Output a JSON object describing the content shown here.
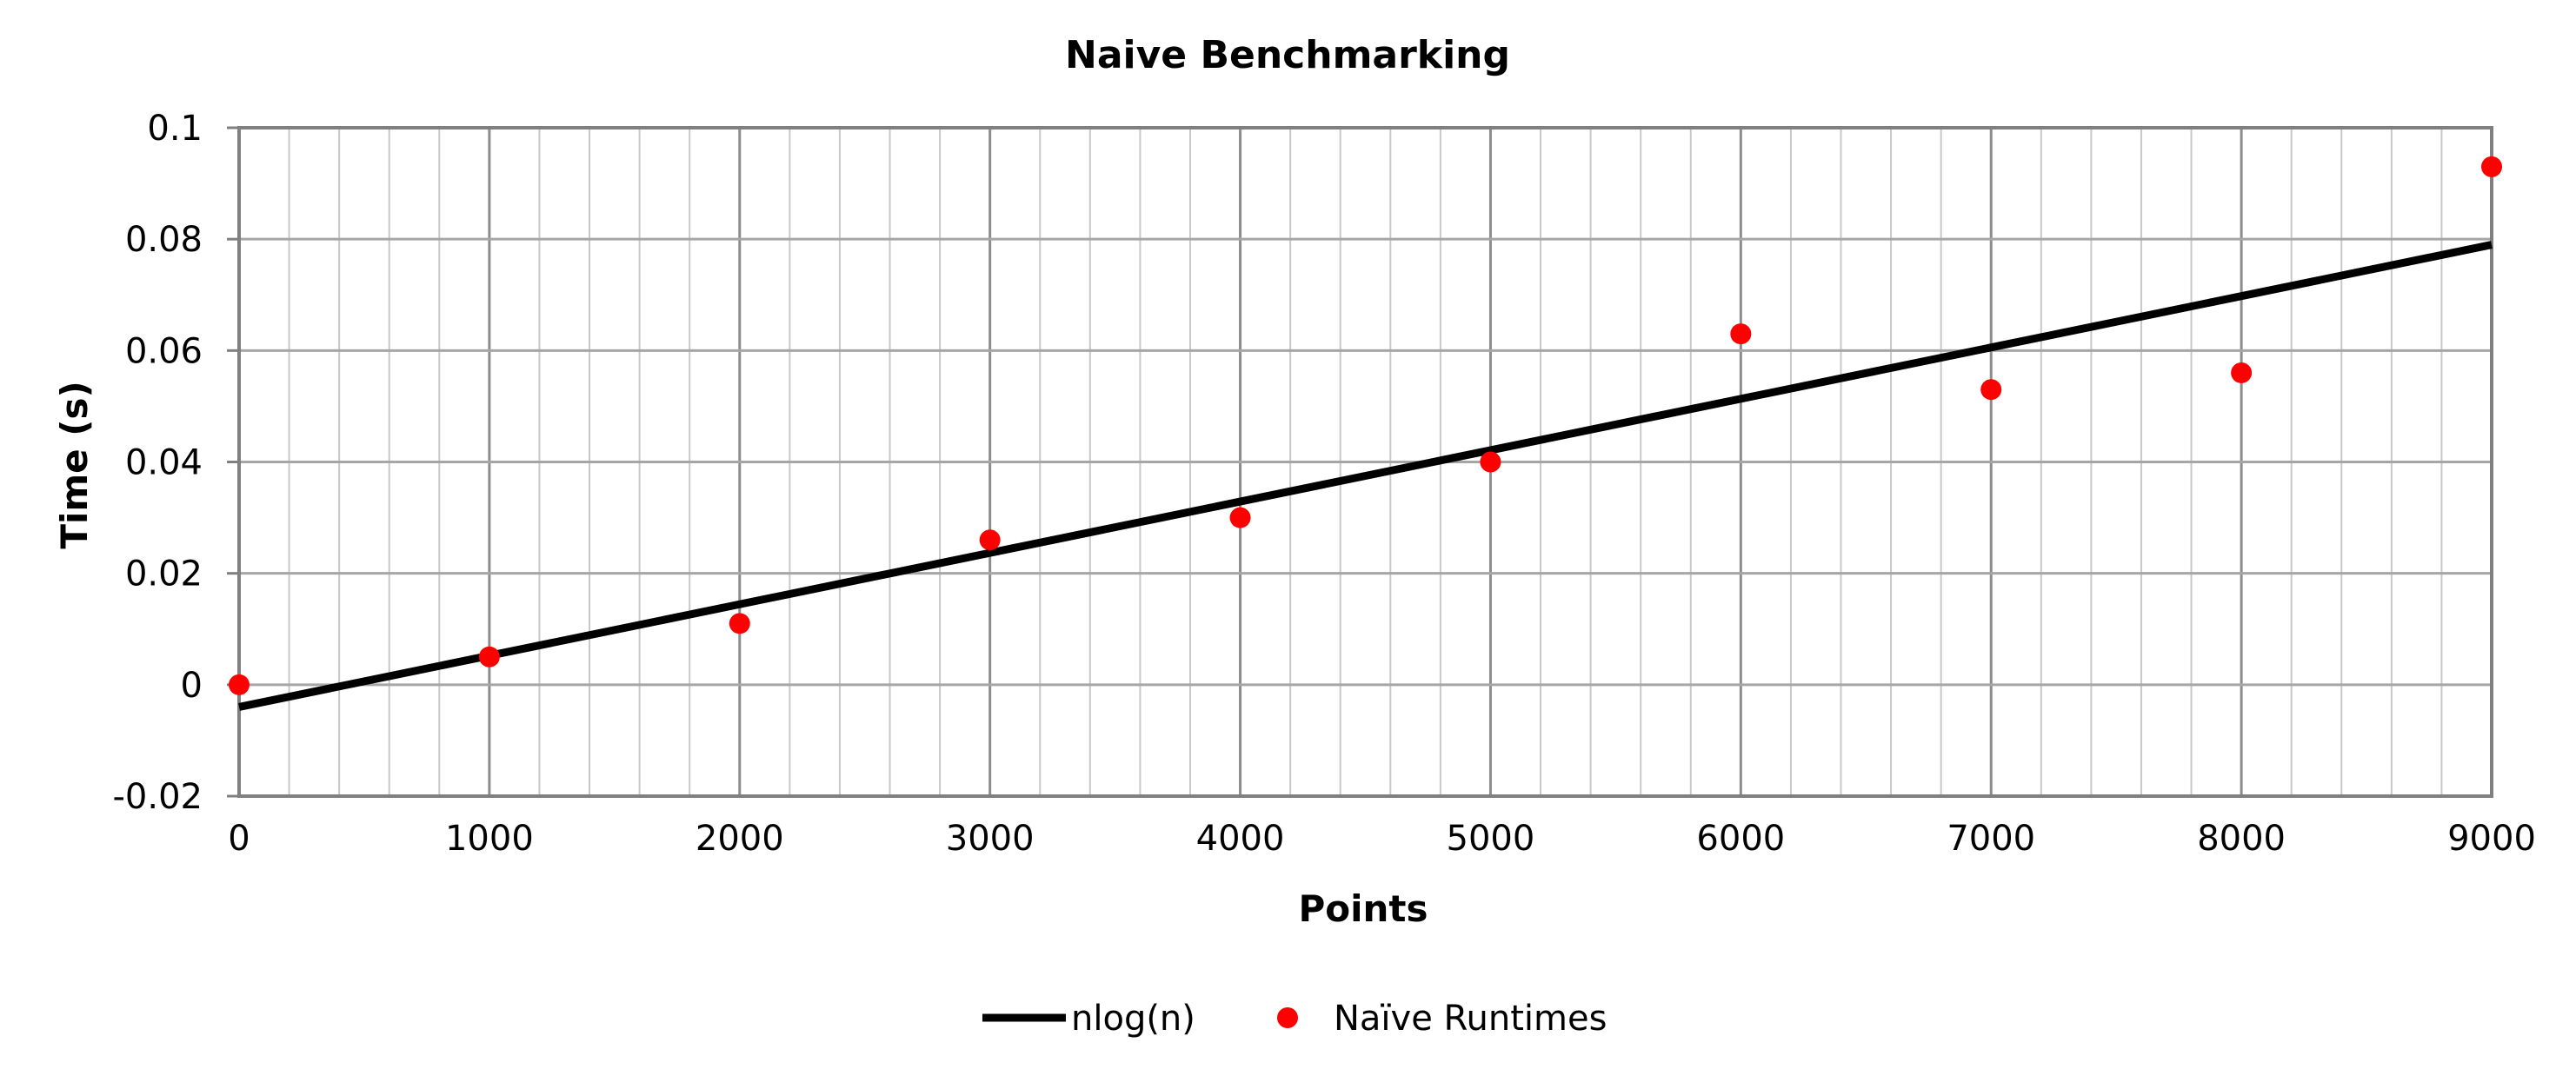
{
  "chart_data": {
    "type": "scatter",
    "title": "Naive Benchmarking",
    "xlabel": "Points",
    "ylabel": "Time (s)",
    "xlim": [
      0,
      9000
    ],
    "ylim": [
      -0.02,
      0.1
    ],
    "x_ticks": [
      "0",
      "1000",
      "2000",
      "3000",
      "4000",
      "5000",
      "6000",
      "7000",
      "8000",
      "9000"
    ],
    "y_ticks": [
      "-0.02",
      "0",
      "0.02",
      "0.04",
      "0.06",
      "0.08",
      "0.1"
    ],
    "x_tick_values": [
      0,
      1000,
      2000,
      3000,
      4000,
      5000,
      6000,
      7000,
      8000,
      9000
    ],
    "y_tick_values": [
      -0.02,
      0,
      0.02,
      0.04,
      0.06,
      0.08,
      0.1
    ],
    "grid": true,
    "legend_position": "bottom",
    "series": [
      {
        "name": "nlog(n)",
        "kind": "line",
        "color": "#000000",
        "x": [
          0,
          9000
        ],
        "y": [
          -0.004,
          0.079
        ]
      },
      {
        "name": "Naïve Runtimes",
        "kind": "scatter",
        "color": "#ff0000",
        "x": [
          0,
          1000,
          2000,
          3000,
          4000,
          5000,
          6000,
          7000,
          8000,
          9000
        ],
        "y": [
          0.0,
          0.005,
          0.011,
          0.026,
          0.03,
          0.04,
          0.063,
          0.053,
          0.056,
          0.093
        ]
      }
    ]
  }
}
